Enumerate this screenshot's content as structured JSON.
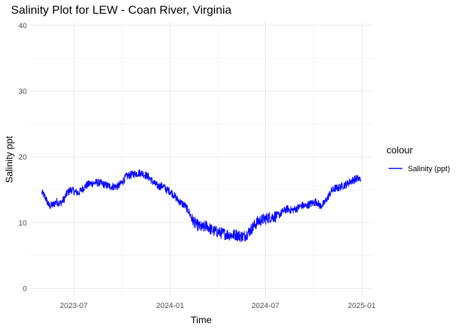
{
  "chart_data": {
    "type": "line",
    "title": "Salinity Plot for LEW - Coan River, Virginia",
    "xlabel": "Time",
    "ylabel": "Salinity ppt",
    "x_ticks": [
      "2023-07",
      "2024-01",
      "2024-07",
      "2025-01"
    ],
    "y_ticks": [
      0,
      10,
      20,
      30,
      40
    ],
    "ylim": [
      -1.3,
      40.5
    ],
    "xlim": [
      "2023-04-09",
      "2025-01-22"
    ],
    "grid": true,
    "legend": {
      "title": "colour",
      "position": "right"
    },
    "series": [
      {
        "name": "Salinity (ppt)",
        "color": "#0000ff",
        "x": [
          "2023-05-01",
          "2023-05-08",
          "2023-05-15",
          "2023-05-22",
          "2023-05-29",
          "2023-06-05",
          "2023-06-12",
          "2023-06-19",
          "2023-06-26",
          "2023-07-03",
          "2023-07-10",
          "2023-07-17",
          "2023-07-24",
          "2023-07-31",
          "2023-08-07",
          "2023-08-14",
          "2023-08-21",
          "2023-08-28",
          "2023-09-04",
          "2023-09-11",
          "2023-09-18",
          "2023-09-25",
          "2023-10-02",
          "2023-10-09",
          "2023-10-16",
          "2023-10-23",
          "2023-10-30",
          "2023-11-06",
          "2023-11-13",
          "2023-11-20",
          "2023-11-27",
          "2023-12-04",
          "2023-12-11",
          "2023-12-18",
          "2023-12-25",
          "2024-01-01",
          "2024-01-08",
          "2024-01-15",
          "2024-01-22",
          "2024-01-29",
          "2024-02-05",
          "2024-02-12",
          "2024-02-19",
          "2024-02-26",
          "2024-03-04",
          "2024-03-11",
          "2024-03-18",
          "2024-03-25",
          "2024-04-01",
          "2024-04-08",
          "2024-04-15",
          "2024-04-22",
          "2024-04-29",
          "2024-05-06",
          "2024-05-13",
          "2024-05-20",
          "2024-05-27",
          "2024-06-03",
          "2024-06-10",
          "2024-06-17",
          "2024-06-24",
          "2024-07-01",
          "2024-07-08",
          "2024-07-15",
          "2024-07-22",
          "2024-07-29",
          "2024-08-05",
          "2024-08-12",
          "2024-08-19",
          "2024-08-26",
          "2024-09-02",
          "2024-09-09",
          "2024-09-16",
          "2024-09-23",
          "2024-09-30",
          "2024-10-07",
          "2024-10-14",
          "2024-10-21",
          "2024-10-28",
          "2024-11-04",
          "2024-11-11",
          "2024-11-18",
          "2024-11-25",
          "2024-12-02",
          "2024-12-09",
          "2024-12-16",
          "2024-12-23",
          "2024-12-30"
        ],
        "y": [
          14.6,
          13.8,
          12.5,
          12.7,
          13.2,
          12.9,
          13.5,
          14.6,
          15.0,
          14.7,
          14.5,
          15.1,
          15.6,
          15.9,
          16.0,
          16.1,
          16.0,
          15.8,
          15.6,
          15.5,
          15.5,
          15.6,
          16.2,
          17.0,
          17.2,
          17.4,
          17.5,
          17.6,
          17.3,
          17.0,
          16.4,
          15.8,
          15.5,
          15.6,
          15.0,
          14.8,
          14.2,
          13.5,
          13.0,
          12.6,
          11.8,
          10.5,
          9.8,
          9.4,
          9.2,
          9.6,
          9.0,
          8.7,
          8.6,
          8.4,
          8.3,
          8.2,
          8.1,
          8.2,
          8.0,
          7.9,
          8.3,
          8.9,
          9.6,
          10.2,
          10.4,
          10.6,
          10.8,
          10.9,
          11.0,
          11.3,
          11.8,
          12.1,
          11.9,
          12.0,
          12.3,
          12.6,
          12.5,
          12.8,
          13.0,
          13.2,
          12.5,
          12.9,
          13.8,
          14.8,
          15.2,
          15.3,
          15.6,
          15.8,
          16.2,
          16.5,
          16.7,
          16.6
        ]
      }
    ]
  }
}
